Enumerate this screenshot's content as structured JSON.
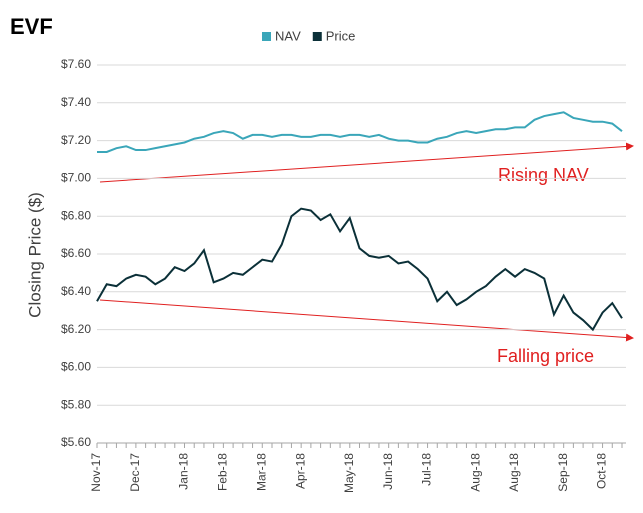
{
  "chart_data": {
    "type": "line",
    "title": "EVF",
    "y_label": "Closing Price ($)",
    "categories": [
      "Nov-17",
      null,
      null,
      null,
      "Dec-17",
      null,
      null,
      null,
      null,
      "Jan-18",
      null,
      null,
      null,
      "Feb-18",
      null,
      null,
      null,
      "Mar-18",
      null,
      null,
      null,
      "Apr-18",
      null,
      null,
      null,
      null,
      "May-18",
      null,
      null,
      null,
      "Jun-18",
      null,
      null,
      null,
      "Jul-18",
      null,
      null,
      null,
      null,
      "Aug-18",
      null,
      null,
      null,
      "Aug-18",
      null,
      null,
      null,
      null,
      "Sep-18",
      null,
      null,
      null,
      "Oct-18",
      null,
      null
    ],
    "series": [
      {
        "name": "NAV",
        "color": "#3aa6b9",
        "values": [
          7.14,
          7.14,
          7.16,
          7.17,
          7.15,
          7.15,
          7.16,
          7.17,
          7.18,
          7.19,
          7.21,
          7.22,
          7.24,
          7.25,
          7.24,
          7.21,
          7.23,
          7.23,
          7.22,
          7.23,
          7.23,
          7.22,
          7.22,
          7.23,
          7.23,
          7.22,
          7.23,
          7.23,
          7.22,
          7.23,
          7.21,
          7.2,
          7.2,
          7.19,
          7.19,
          7.21,
          7.22,
          7.24,
          7.25,
          7.24,
          7.25,
          7.26,
          7.26,
          7.27,
          7.27,
          7.31,
          7.33,
          7.34,
          7.35,
          7.32,
          7.31,
          7.3,
          7.3,
          7.29,
          7.25
        ]
      },
      {
        "name": "Price",
        "color": "#0b3038",
        "values": [
          6.35,
          6.44,
          6.43,
          6.47,
          6.49,
          6.48,
          6.44,
          6.47,
          6.53,
          6.51,
          6.55,
          6.62,
          6.45,
          6.47,
          6.5,
          6.49,
          6.53,
          6.57,
          6.56,
          6.65,
          6.8,
          6.84,
          6.83,
          6.78,
          6.81,
          6.72,
          6.79,
          6.63,
          6.59,
          6.58,
          6.59,
          6.55,
          6.56,
          6.52,
          6.47,
          6.35,
          6.4,
          6.33,
          6.36,
          6.4,
          6.43,
          6.48,
          6.52,
          6.48,
          6.52,
          6.5,
          6.47,
          6.28,
          6.38,
          6.29,
          6.25,
          6.2,
          6.29,
          6.34,
          6.26
        ]
      }
    ],
    "ylim": [
      5.6,
      7.6
    ],
    "yticks": [
      {
        "value": 5.6,
        "label": "$5.60"
      },
      {
        "value": 5.8,
        "label": "$5.80"
      },
      {
        "value": 6.0,
        "label": "$6.00"
      },
      {
        "value": 6.2,
        "label": "$6.20"
      },
      {
        "value": 6.4,
        "label": "$6.40"
      },
      {
        "value": 6.6,
        "label": "$6.60"
      },
      {
        "value": 6.8,
        "label": "$6.80"
      },
      {
        "value": 7.0,
        "label": "$7.00"
      },
      {
        "value": 7.2,
        "label": "$7.20"
      },
      {
        "value": 7.4,
        "label": "$7.40"
      },
      {
        "value": 7.6,
        "label": "$7.60"
      }
    ],
    "grid": true,
    "annotations": [
      "Rising NAV",
      "Falling price"
    ]
  }
}
